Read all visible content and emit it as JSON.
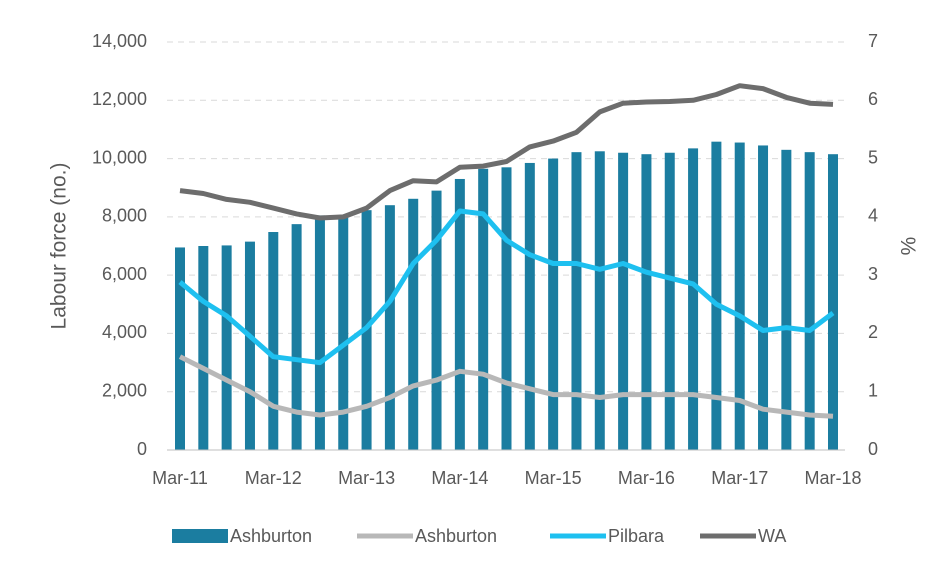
{
  "chart_data": {
    "type": "bar-line",
    "y_label": "Labour force (no.)",
    "y2_label": "%",
    "categories": [
      "Mar-11",
      null,
      null,
      null,
      "Mar-12",
      null,
      null,
      null,
      "Mar-13",
      null,
      null,
      null,
      "Mar-14",
      null,
      null,
      null,
      "Mar-15",
      null,
      null,
      null,
      "Mar-16",
      null,
      null,
      null,
      "Mar-17",
      null,
      null,
      null,
      "Mar-18"
    ],
    "series": [
      {
        "name": "Ashburton",
        "kind": "bar",
        "color": "#1b7da0",
        "values": [
          6950,
          7000,
          7020,
          7150,
          7480,
          7750,
          8050,
          8000,
          8230,
          8400,
          8620,
          8900,
          9300,
          9650,
          9700,
          9850,
          10000,
          10220,
          10250,
          10200,
          10150,
          10200,
          10350,
          10580,
          10550,
          10450,
          10300,
          10220,
          10150
        ]
      },
      {
        "name": "Ashburton",
        "kind": "line",
        "axis": "y2",
        "color": "#b8b8b8",
        "values": [
          1.6,
          1.4,
          1.2,
          1.0,
          0.75,
          0.65,
          0.6,
          0.65,
          0.75,
          0.9,
          1.1,
          1.2,
          1.35,
          1.3,
          1.15,
          1.05,
          0.95,
          0.95,
          0.9,
          0.95,
          0.95,
          0.95,
          0.95,
          0.9,
          0.85,
          0.7,
          0.65,
          0.6,
          0.58
        ]
      },
      {
        "name": "Pilbara",
        "kind": "line",
        "axis": "y2",
        "color": "#1ec0f0",
        "values": [
          2.88,
          2.55,
          2.3,
          1.95,
          1.6,
          1.55,
          1.5,
          1.8,
          2.1,
          2.55,
          3.2,
          3.6,
          4.1,
          4.05,
          3.6,
          3.35,
          3.2,
          3.2,
          3.1,
          3.2,
          3.05,
          2.95,
          2.85,
          2.5,
          2.3,
          2.05,
          2.1,
          2.05,
          2.35
        ]
      },
      {
        "name": "WA",
        "kind": "line",
        "axis": "y2",
        "color": "#6d6d6d",
        "values": [
          4.45,
          4.4,
          4.3,
          4.25,
          4.15,
          4.05,
          3.98,
          4.0,
          4.15,
          4.45,
          4.62,
          4.6,
          4.85,
          4.87,
          4.95,
          5.2,
          5.3,
          5.45,
          5.8,
          5.95,
          5.97,
          5.98,
          6.0,
          6.1,
          6.25,
          6.2,
          6.05,
          5.95,
          5.93
        ]
      }
    ],
    "ylim": [
      0,
      14000
    ],
    "yticks": [
      0,
      {
        "value": 2000,
        "label": "2,000"
      },
      {
        "value": 4000,
        "label": "4,000"
      },
      {
        "value": 6000,
        "label": "6,000"
      },
      {
        "value": 8000,
        "label": "8,000"
      },
      {
        "value": 10000,
        "label": "10,000"
      },
      {
        "value": 12000,
        "label": "12,000"
      },
      {
        "value": 14000,
        "label": "14,000"
      }
    ],
    "y2lim": [
      0,
      7
    ],
    "y2ticks": [
      0,
      1,
      2,
      3,
      4,
      5,
      6,
      7
    ],
    "grid": true,
    "legend": "bottom"
  }
}
